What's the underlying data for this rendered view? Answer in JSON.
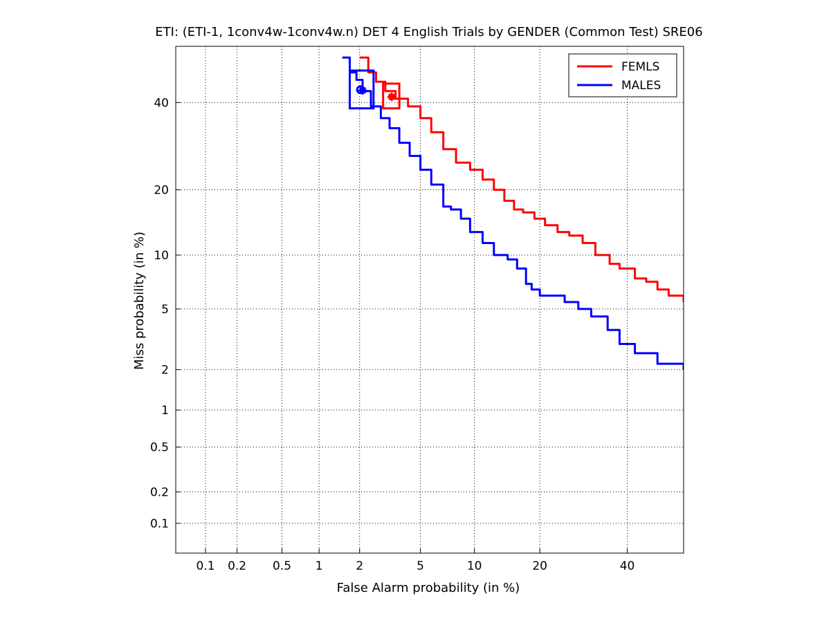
{
  "chart_data": {
    "type": "line",
    "title": "ETI: (ETI-1, 1conv4w-1conv4w.n) DET 4 English Trials by GENDER (Common Test) SRE06",
    "xlabel": "False Alarm probability (in %)",
    "ylabel": "Miss probability (in %)",
    "x_scale": "probit",
    "y_scale": "probit",
    "xlim": [
      0.05,
      55
    ],
    "ylim": [
      0.05,
      55
    ],
    "x_ticks": [
      0.1,
      0.2,
      0.5,
      1,
      2,
      5,
      10,
      20,
      40
    ],
    "x_tick_labels": [
      "0.1",
      "0.2",
      "0.5",
      "1",
      "2",
      "5",
      "10",
      "20",
      "40"
    ],
    "y_ticks": [
      0.1,
      0.2,
      0.5,
      1,
      2,
      5,
      10,
      20,
      40
    ],
    "y_tick_labels": [
      "0.1",
      "0.2",
      "0.5",
      "1",
      "2",
      "5",
      "10",
      "20",
      "40"
    ],
    "grid": true,
    "legend_position": "top-right",
    "series": [
      {
        "name": "FEMLS",
        "color": "#ff0000",
        "x": [
          2.0,
          2.3,
          2.6,
          3.0,
          3.5,
          4.2,
          5.0,
          5.8,
          6.8,
          8.0,
          9.5,
          11.0,
          12.5,
          14.0,
          15.5,
          17.0,
          19.0,
          21.0,
          23.5,
          26.0,
          29.0,
          32.0,
          35.5,
          38.0,
          42.0,
          45.0,
          48.0,
          51.0,
          55.0
        ],
        "y": [
          52.0,
          48.0,
          45.5,
          43.0,
          41.0,
          39.0,
          36.0,
          32.5,
          28.5,
          25.5,
          24.0,
          22.0,
          20.0,
          18.0,
          16.5,
          16.0,
          15.0,
          14.0,
          13.0,
          12.5,
          11.5,
          10.0,
          9.0,
          8.5,
          7.5,
          7.2,
          6.5,
          6.0,
          5.5
        ],
        "min_dcf_point": [
          3.3,
          41.5
        ],
        "act_dcf_box": {
          "x_range": [
            2.9,
            3.7
          ],
          "y_range": [
            38.5,
            45.0
          ]
        }
      },
      {
        "name": "MALES",
        "color": "#0000ff",
        "x": [
          1.5,
          1.7,
          1.9,
          2.1,
          2.4,
          2.8,
          3.2,
          3.7,
          4.3,
          5.0,
          5.8,
          6.8,
          7.5,
          8.5,
          9.5,
          11.0,
          12.5,
          14.5,
          16.0,
          17.5,
          18.5,
          20.0,
          23.0,
          25.0,
          28.0,
          31.0,
          35.0,
          38.0,
          42.0,
          48.0,
          54.0,
          55.0
        ],
        "y": [
          52.0,
          48.0,
          46.0,
          43.0,
          39.0,
          36.0,
          33.5,
          30.0,
          27.0,
          24.0,
          21.0,
          17.0,
          16.5,
          15.0,
          13.0,
          11.5,
          10.0,
          9.5,
          8.5,
          7.0,
          6.5,
          6.0,
          6.0,
          5.5,
          5.0,
          4.5,
          3.7,
          3.0,
          2.6,
          2.2,
          2.2,
          2.0
        ],
        "min_dcf_point": [
          2.1,
          43.2
        ],
        "act_dcf_box": {
          "x_range": [
            1.7,
            2.5
          ],
          "y_range": [
            38.5,
            48.5
          ]
        }
      }
    ]
  }
}
